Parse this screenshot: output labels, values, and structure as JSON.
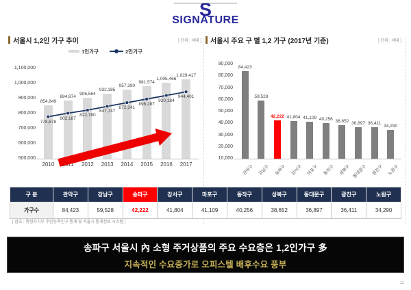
{
  "logo": {
    "initial": "S",
    "text": "SIGNATURE",
    "color": "#28289b"
  },
  "chart_data": [
    {
      "type": "bar",
      "title": "서울시 1,2인 가구 추이",
      "unit_label": "[ 단위 : 세대 ]",
      "categories": [
        "2010",
        "2011",
        "2012",
        "2013",
        "2014",
        "2015",
        "2016",
        "2017"
      ],
      "series": [
        {
          "name": "1인가구",
          "type": "bar",
          "color": "#d9d9d9",
          "values": [
            854849,
            884874,
            906564,
            932385,
            957390,
            981574,
            1005466,
            1029417
          ]
        },
        {
          "name": "2인가구",
          "type": "line",
          "color": "#1f3864",
          "values": [
            778678,
            802187,
            822780,
            847747,
            872241,
            896287,
            920184,
            944401
          ]
        }
      ],
      "ylim": [
        500000,
        1100000
      ],
      "ytick_step": 100000,
      "grid": false,
      "legend_position": "top",
      "annotation": "rising-red-arrow"
    },
    {
      "type": "bar",
      "title": "서울시 주요 구 별 1,2 가구 (2017년 기준)",
      "unit_label": "[ 단위 : 세대 ]",
      "categories": [
        "관악구",
        "강남구",
        "송파구",
        "강서구",
        "마포구",
        "동작구",
        "성북구",
        "동대문구",
        "광진구",
        "노원구"
      ],
      "values": [
        84423,
        59528,
        42222,
        41804,
        41109,
        40256,
        38652,
        36897,
        36411,
        34290
      ],
      "highlight_index": 2,
      "bar_color": "#7f7f7f",
      "highlight_color": "#ff0000",
      "ylim": [
        10000,
        90000
      ],
      "ytick_step": 10000,
      "grid": false,
      "legend_position": "none"
    }
  ],
  "table": {
    "headers": [
      "구  분",
      "관악구",
      "강남구",
      "송파구",
      "강서구",
      "마포구",
      "동작구",
      "성북구",
      "동대문구",
      "광진구",
      "노원구"
    ],
    "row_label": "가구수",
    "values": [
      "84,423",
      "59,528",
      "42,222",
      "41,804",
      "41,109",
      "40,256",
      "38,652",
      "36,897",
      "36,411",
      "34,290"
    ],
    "highlight_index": 2,
    "header_bg": "#1f3050",
    "highlight_color": "#ff0000"
  },
  "source_note": "[ 참조 : 행정자치부 주민등록인구 통계 및 서울시 통계정보 시스템 ]",
  "banner": {
    "line1": "송파구 서울시 內 소형 주거상품의 주요 수요층은 1,2인가구 多",
    "line2": "지속적인 수요증가로 오피스텔 배후수요 풍부",
    "accent_color": "#c3ae56"
  },
  "page_number": "11"
}
